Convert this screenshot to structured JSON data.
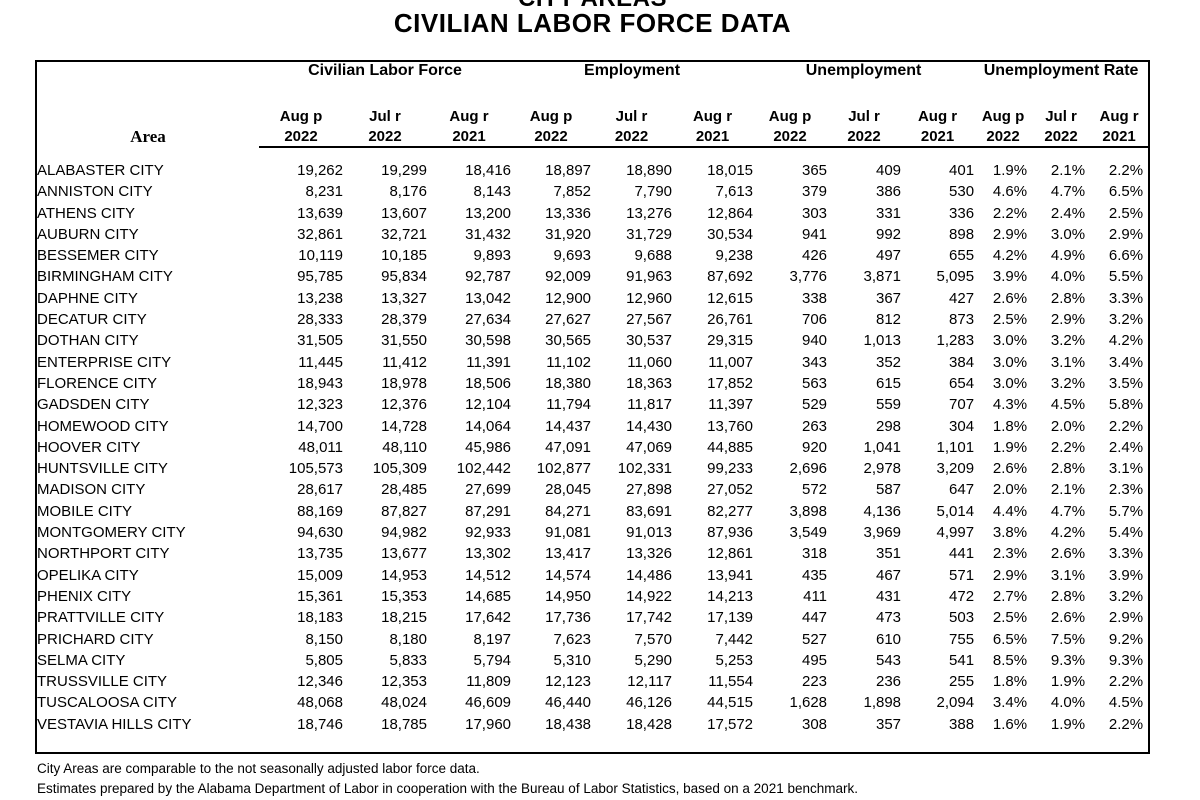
{
  "title": {
    "line1_clipped": "CITY AREAS",
    "line2": "CIVILIAN LABOR FORCE DATA"
  },
  "table": {
    "area_header": "Area",
    "groups": [
      "Civilian Labor Force",
      "Employment",
      "Unemployment",
      "Unemployment Rate"
    ],
    "periods": [
      {
        "l1": "Aug p",
        "l2": "2022"
      },
      {
        "l1": "Jul r",
        "l2": "2022"
      },
      {
        "l1": "Aug r",
        "l2": "2021"
      }
    ],
    "rows": [
      [
        "ALABASTER CITY",
        "19,262",
        "19,299",
        "18,416",
        "18,897",
        "18,890",
        "18,015",
        "365",
        "409",
        "401",
        "1.9%",
        "2.1%",
        "2.2%"
      ],
      [
        "ANNISTON CITY",
        "8,231",
        "8,176",
        "8,143",
        "7,852",
        "7,790",
        "7,613",
        "379",
        "386",
        "530",
        "4.6%",
        "4.7%",
        "6.5%"
      ],
      [
        "ATHENS CITY",
        "13,639",
        "13,607",
        "13,200",
        "13,336",
        "13,276",
        "12,864",
        "303",
        "331",
        "336",
        "2.2%",
        "2.4%",
        "2.5%"
      ],
      [
        "AUBURN CITY",
        "32,861",
        "32,721",
        "31,432",
        "31,920",
        "31,729",
        "30,534",
        "941",
        "992",
        "898",
        "2.9%",
        "3.0%",
        "2.9%"
      ],
      [
        "BESSEMER CITY",
        "10,119",
        "10,185",
        "9,893",
        "9,693",
        "9,688",
        "9,238",
        "426",
        "497",
        "655",
        "4.2%",
        "4.9%",
        "6.6%"
      ],
      [
        "BIRMINGHAM CITY",
        "95,785",
        "95,834",
        "92,787",
        "92,009",
        "91,963",
        "87,692",
        "3,776",
        "3,871",
        "5,095",
        "3.9%",
        "4.0%",
        "5.5%"
      ],
      [
        "DAPHNE CITY",
        "13,238",
        "13,327",
        "13,042",
        "12,900",
        "12,960",
        "12,615",
        "338",
        "367",
        "427",
        "2.6%",
        "2.8%",
        "3.3%"
      ],
      [
        "DECATUR CITY",
        "28,333",
        "28,379",
        "27,634",
        "27,627",
        "27,567",
        "26,761",
        "706",
        "812",
        "873",
        "2.5%",
        "2.9%",
        "3.2%"
      ],
      [
        "DOTHAN CITY",
        "31,505",
        "31,550",
        "30,598",
        "30,565",
        "30,537",
        "29,315",
        "940",
        "1,013",
        "1,283",
        "3.0%",
        "3.2%",
        "4.2%"
      ],
      [
        "ENTERPRISE CITY",
        "11,445",
        "11,412",
        "11,391",
        "11,102",
        "11,060",
        "11,007",
        "343",
        "352",
        "384",
        "3.0%",
        "3.1%",
        "3.4%"
      ],
      [
        "FLORENCE CITY",
        "18,943",
        "18,978",
        "18,506",
        "18,380",
        "18,363",
        "17,852",
        "563",
        "615",
        "654",
        "3.0%",
        "3.2%",
        "3.5%"
      ],
      [
        "GADSDEN CITY",
        "12,323",
        "12,376",
        "12,104",
        "11,794",
        "11,817",
        "11,397",
        "529",
        "559",
        "707",
        "4.3%",
        "4.5%",
        "5.8%"
      ],
      [
        "HOMEWOOD CITY",
        "14,700",
        "14,728",
        "14,064",
        "14,437",
        "14,430",
        "13,760",
        "263",
        "298",
        "304",
        "1.8%",
        "2.0%",
        "2.2%"
      ],
      [
        "HOOVER CITY",
        "48,011",
        "48,110",
        "45,986",
        "47,091",
        "47,069",
        "44,885",
        "920",
        "1,041",
        "1,101",
        "1.9%",
        "2.2%",
        "2.4%"
      ],
      [
        "HUNTSVILLE CITY",
        "105,573",
        "105,309",
        "102,442",
        "102,877",
        "102,331",
        "99,233",
        "2,696",
        "2,978",
        "3,209",
        "2.6%",
        "2.8%",
        "3.1%"
      ],
      [
        "MADISON CITY",
        "28,617",
        "28,485",
        "27,699",
        "28,045",
        "27,898",
        "27,052",
        "572",
        "587",
        "647",
        "2.0%",
        "2.1%",
        "2.3%"
      ],
      [
        "MOBILE CITY",
        "88,169",
        "87,827",
        "87,291",
        "84,271",
        "83,691",
        "82,277",
        "3,898",
        "4,136",
        "5,014",
        "4.4%",
        "4.7%",
        "5.7%"
      ],
      [
        "MONTGOMERY CITY",
        "94,630",
        "94,982",
        "92,933",
        "91,081",
        "91,013",
        "87,936",
        "3,549",
        "3,969",
        "4,997",
        "3.8%",
        "4.2%",
        "5.4%"
      ],
      [
        "NORTHPORT CITY",
        "13,735",
        "13,677",
        "13,302",
        "13,417",
        "13,326",
        "12,861",
        "318",
        "351",
        "441",
        "2.3%",
        "2.6%",
        "3.3%"
      ],
      [
        "OPELIKA CITY",
        "15,009",
        "14,953",
        "14,512",
        "14,574",
        "14,486",
        "13,941",
        "435",
        "467",
        "571",
        "2.9%",
        "3.1%",
        "3.9%"
      ],
      [
        "PHENIX CITY",
        "15,361",
        "15,353",
        "14,685",
        "14,950",
        "14,922",
        "14,213",
        "411",
        "431",
        "472",
        "2.7%",
        "2.8%",
        "3.2%"
      ],
      [
        "PRATTVILLE CITY",
        "18,183",
        "18,215",
        "17,642",
        "17,736",
        "17,742",
        "17,139",
        "447",
        "473",
        "503",
        "2.5%",
        "2.6%",
        "2.9%"
      ],
      [
        "PRICHARD CITY",
        "8,150",
        "8,180",
        "8,197",
        "7,623",
        "7,570",
        "7,442",
        "527",
        "610",
        "755",
        "6.5%",
        "7.5%",
        "9.2%"
      ],
      [
        "SELMA CITY",
        "5,805",
        "5,833",
        "5,794",
        "5,310",
        "5,290",
        "5,253",
        "495",
        "543",
        "541",
        "8.5%",
        "9.3%",
        "9.3%"
      ],
      [
        "TRUSSVILLE CITY",
        "12,346",
        "12,353",
        "11,809",
        "12,123",
        "12,117",
        "11,554",
        "223",
        "236",
        "255",
        "1.8%",
        "1.9%",
        "2.2%"
      ],
      [
        "TUSCALOOSA CITY",
        "48,068",
        "48,024",
        "46,609",
        "46,440",
        "46,126",
        "44,515",
        "1,628",
        "1,898",
        "2,094",
        "3.4%",
        "4.0%",
        "4.5%"
      ],
      [
        "VESTAVIA HILLS CITY",
        "18,746",
        "18,785",
        "17,960",
        "18,438",
        "18,428",
        "17,572",
        "308",
        "357",
        "388",
        "1.6%",
        "1.9%",
        "2.2%"
      ]
    ]
  },
  "footnotes": [
    "City Areas are comparable to the not seasonally adjusted labor force data.",
    "Estimates prepared by the Alabama Department of Labor in cooperation with the Bureau of Labor Statistics, based on a 2021 benchmark."
  ]
}
